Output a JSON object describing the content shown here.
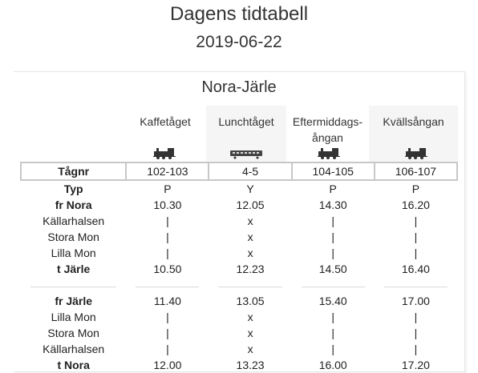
{
  "page": {
    "title": "Dagens tidtabell",
    "date": "2019-06-22"
  },
  "route": {
    "title": "Nora-Järle"
  },
  "trains": [
    {
      "name_line1": "Kaffetåget",
      "name_line2": "",
      "icon": "steam-locomotive-icon"
    },
    {
      "name_line1": "Lunchtåget",
      "name_line2": "",
      "icon": "railcar-icon"
    },
    {
      "name_line1": "Eftermiddags-",
      "name_line2": "ångan",
      "icon": "steam-locomotive-icon"
    },
    {
      "name_line1": "Kvällsångan",
      "name_line2": "",
      "icon": "steam-locomotive-icon"
    }
  ],
  "tagnr": {
    "label": "Tågnr",
    "values": [
      "102-103",
      "4-5",
      "104-105",
      "106-107"
    ]
  },
  "outbound": [
    {
      "label": "Typ",
      "bold": true,
      "values": [
        "P",
        "Y",
        "P",
        "P"
      ]
    },
    {
      "label": "fr Nora",
      "bold": true,
      "values": [
        "10.30",
        "12.05",
        "14.30",
        "16.20"
      ]
    },
    {
      "label": "Källarhalsen",
      "bold": false,
      "values": [
        "|",
        "x",
        "|",
        "|"
      ]
    },
    {
      "label": "Stora Mon",
      "bold": false,
      "values": [
        "|",
        "x",
        "|",
        "|"
      ]
    },
    {
      "label": "Lilla Mon",
      "bold": false,
      "values": [
        "|",
        "x",
        "|",
        "|"
      ]
    },
    {
      "label": "t Järle",
      "bold": true,
      "values": [
        "10.50",
        "12.23",
        "14.50",
        "16.40"
      ]
    }
  ],
  "inbound": [
    {
      "label": "fr Järle",
      "bold": true,
      "values": [
        "11.40",
        "13.05",
        "15.40",
        "17.00"
      ]
    },
    {
      "label": "Lilla Mon",
      "bold": false,
      "values": [
        "|",
        "x",
        "|",
        "|"
      ]
    },
    {
      "label": "Stora Mon",
      "bold": false,
      "values": [
        "|",
        "x",
        "|",
        "|"
      ]
    },
    {
      "label": "Källarhalsen",
      "bold": false,
      "values": [
        "|",
        "x",
        "|",
        "|"
      ]
    },
    {
      "label": "t Nora",
      "bold": true,
      "values": [
        "12.00",
        "13.23",
        "16.00",
        "17.20"
      ]
    }
  ]
}
